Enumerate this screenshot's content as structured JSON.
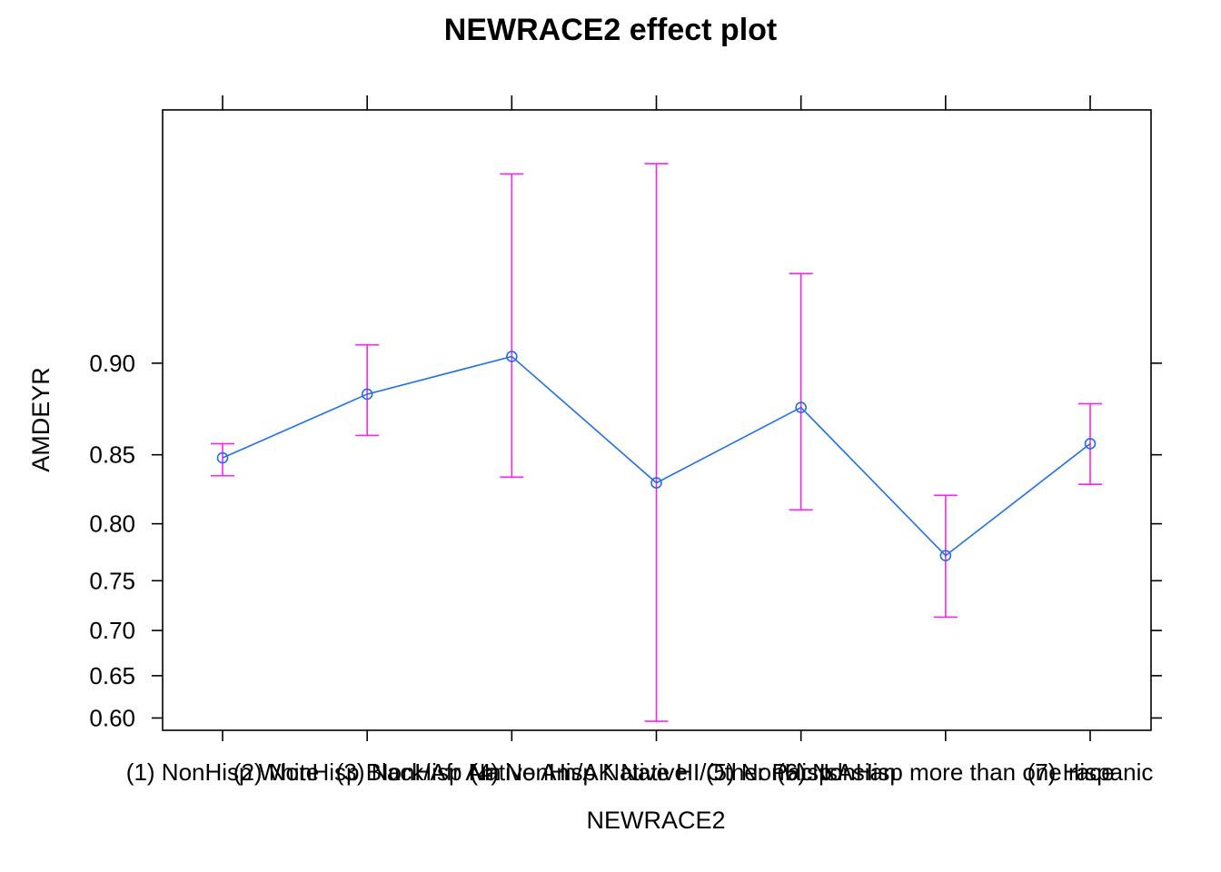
{
  "chart_data": {
    "type": "line",
    "title": "NEWRACE2 effect plot",
    "xlabel": "NEWRACE2",
    "ylabel": "AMDEYR",
    "categories": [
      "(1) NonHisp White",
      "(2) NonHisp Black/Afr Am",
      "(3) NonHisp Native Am/AK Native",
      "(4) NonHisp Native HI/Other Pac Isl",
      "(5) NonHisp Asian",
      "(6) NonHisp more than one race",
      "(7) Hispanic"
    ],
    "series": [
      {
        "values": [
          0.848,
          0.885,
          0.903,
          0.831,
          0.878,
          0.773,
          0.857
        ],
        "lower": [
          0.836,
          0.862,
          0.835,
          0.596,
          0.811,
          0.714,
          0.83
        ],
        "upper": [
          0.857,
          0.908,
          0.959,
          0.961,
          0.934,
          0.822,
          0.88
        ]
      }
    ],
    "yticks": [
      0.6,
      0.65,
      0.7,
      0.75,
      0.8,
      0.85,
      0.9
    ],
    "ytick_labels": [
      "0.60",
      "0.65",
      "0.70",
      "0.75",
      "0.80",
      "0.85",
      "0.90"
    ],
    "ylim": [
      0.585,
      0.97
    ],
    "y_scale": "logit",
    "grid": false,
    "colors": {
      "line": "#1F6FE8",
      "errorbar": "#FF22EE",
      "axis": "#000000"
    }
  }
}
